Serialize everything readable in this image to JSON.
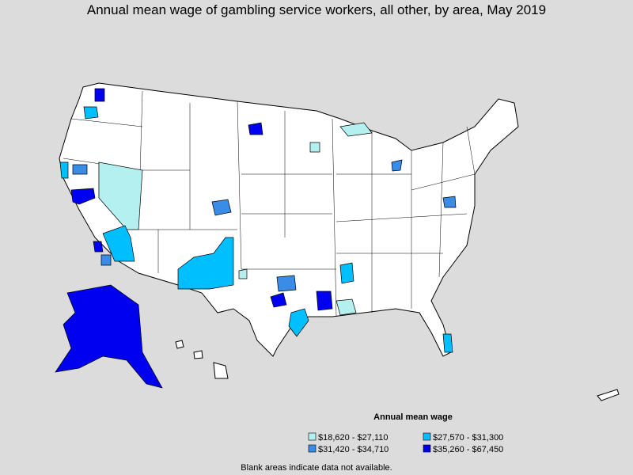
{
  "title": "Annual mean wage of gambling service workers, all other, by area, May 2019",
  "legend": {
    "title": "Annual mean wage",
    "items": [
      {
        "label": "$18,620 - $27,110",
        "color": "#b4f0f0"
      },
      {
        "label": "$27,570 - $31,300",
        "color": "#00bfff"
      },
      {
        "label": "$31,420 - $34,710",
        "color": "#3a8ce6"
      },
      {
        "label": "$35,260 - $67,450",
        "color": "#0000f0"
      }
    ]
  },
  "note": "Blank areas indicate data not available."
}
